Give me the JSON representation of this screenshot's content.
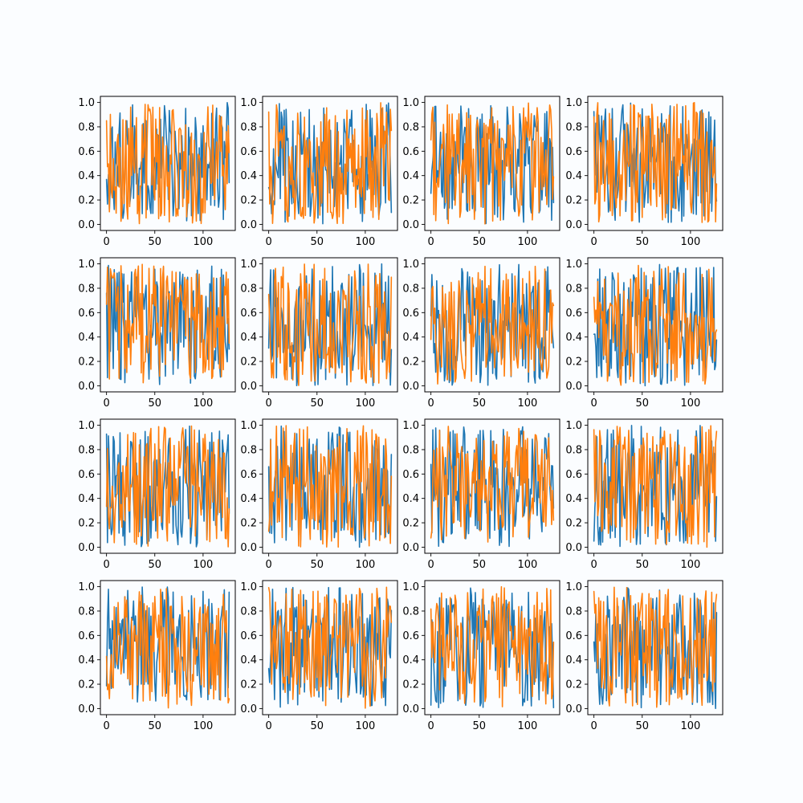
{
  "chart_data": {
    "type": "line",
    "layout": {
      "rows": 4,
      "cols": 4
    },
    "points_per_series": 128,
    "series_names_note": "",
    "colors": [
      "#1f77b4",
      "#ff7f0e"
    ],
    "xlim": [
      -6.35,
      133.35
    ],
    "ylim": [
      -0.05,
      1.05
    ],
    "x_ticks": [
      0,
      50,
      100
    ],
    "x_tick_labels": [
      "0",
      "50",
      "100"
    ],
    "y_ticks": [
      0.0,
      0.2,
      0.4,
      0.6,
      0.8,
      1.0
    ],
    "y_tick_labels": [
      "0.0",
      "0.2",
      "0.4",
      "0.6",
      "0.8",
      "1.0"
    ],
    "grid": false,
    "title": "",
    "xlabel": "",
    "ylabel": "",
    "subplots": [
      {
        "seeds": [
          11,
          12
        ]
      },
      {
        "seeds": [
          21,
          22
        ]
      },
      {
        "seeds": [
          31,
          32
        ]
      },
      {
        "seeds": [
          41,
          42
        ]
      },
      {
        "seeds": [
          51,
          52
        ]
      },
      {
        "seeds": [
          61,
          62
        ]
      },
      {
        "seeds": [
          71,
          72
        ]
      },
      {
        "seeds": [
          81,
          82
        ]
      },
      {
        "seeds": [
          91,
          92
        ]
      },
      {
        "seeds": [
          101,
          102
        ]
      },
      {
        "seeds": [
          111,
          112
        ]
      },
      {
        "seeds": [
          121,
          122
        ]
      },
      {
        "seeds": [
          131,
          132
        ]
      },
      {
        "seeds": [
          141,
          142
        ]
      },
      {
        "seeds": [
          151,
          152
        ]
      },
      {
        "seeds": [
          161,
          162
        ]
      }
    ]
  }
}
